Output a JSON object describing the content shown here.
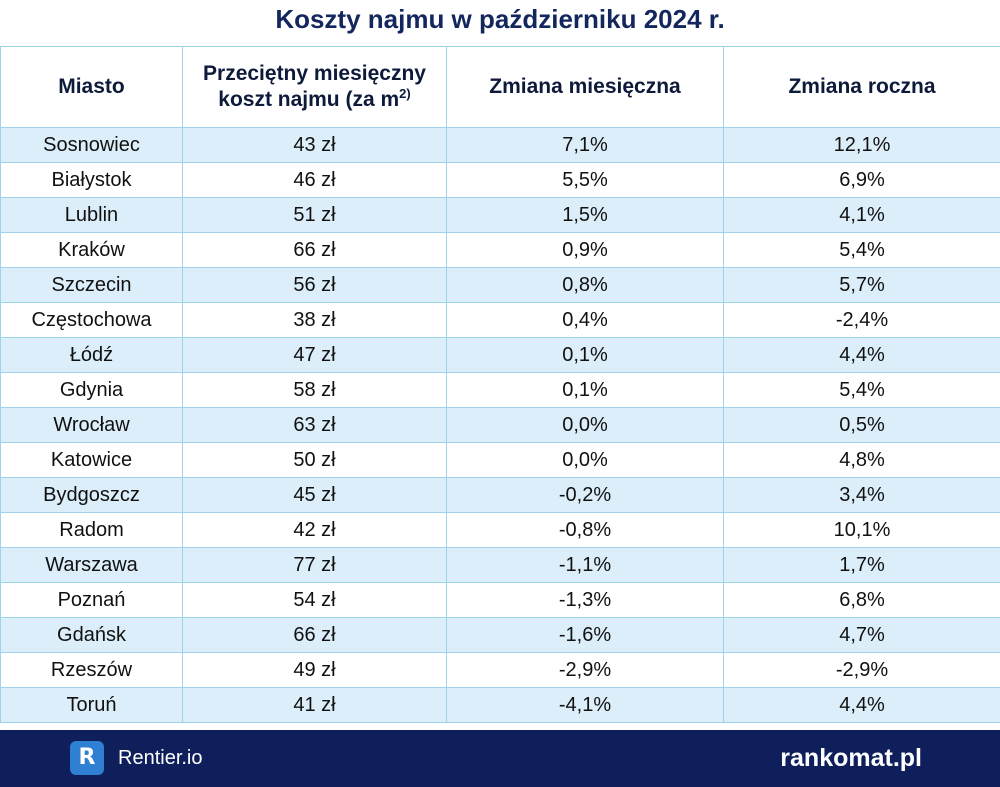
{
  "title": "Koszty najmu w październiku 2024 r.",
  "chart_data": {
    "type": "table",
    "columns": [
      "Miasto",
      "Przeciętny miesięczny koszt najmu (za m",
      "Zmiana miesięczna",
      "Zmiana roczna"
    ],
    "superscript": "2)",
    "rows": [
      [
        "Sosnowiec",
        "43 zł",
        "7,1%",
        "12,1%"
      ],
      [
        "Białystok",
        "46 zł",
        "5,5%",
        "6,9%"
      ],
      [
        "Lublin",
        "51 zł",
        "1,5%",
        "4,1%"
      ],
      [
        "Kraków",
        "66 zł",
        "0,9%",
        "5,4%"
      ],
      [
        "Szczecin",
        "56 zł",
        "0,8%",
        "5,7%"
      ],
      [
        "Częstochowa",
        "38 zł",
        "0,4%",
        "-2,4%"
      ],
      [
        "Łódź",
        "47 zł",
        "0,1%",
        "4,4%"
      ],
      [
        "Gdynia",
        "58 zł",
        "0,1%",
        "5,4%"
      ],
      [
        "Wrocław",
        "63 zł",
        "0,0%",
        "0,5%"
      ],
      [
        "Katowice",
        "50 zł",
        "0,0%",
        "4,8%"
      ],
      [
        "Bydgoszcz",
        "45 zł",
        "-0,2%",
        "3,4%"
      ],
      [
        "Radom",
        "42 zł",
        "-0,8%",
        "10,1%"
      ],
      [
        "Warszawa",
        "77 zł",
        "-1,1%",
        "1,7%"
      ],
      [
        "Poznań",
        "54 zł",
        "-1,3%",
        "6,8%"
      ],
      [
        "Gdańsk",
        "66 zł",
        "-1,6%",
        "4,7%"
      ],
      [
        "Rzeszów",
        "49 zł",
        "-2,9%",
        "-2,9%"
      ],
      [
        "Toruń",
        "41 zł",
        "-4,1%",
        "4,4%"
      ]
    ]
  },
  "footer": {
    "badge_letter": "R",
    "left_brand": "Rentier.io",
    "right_brand": "rankomat.pl"
  },
  "colors": {
    "title": "#13265d",
    "footer_bg": "#0f1f5c",
    "row_alt": "#dbeefa",
    "grid": "#9fd3ec",
    "badge": "#2f7fd3"
  }
}
